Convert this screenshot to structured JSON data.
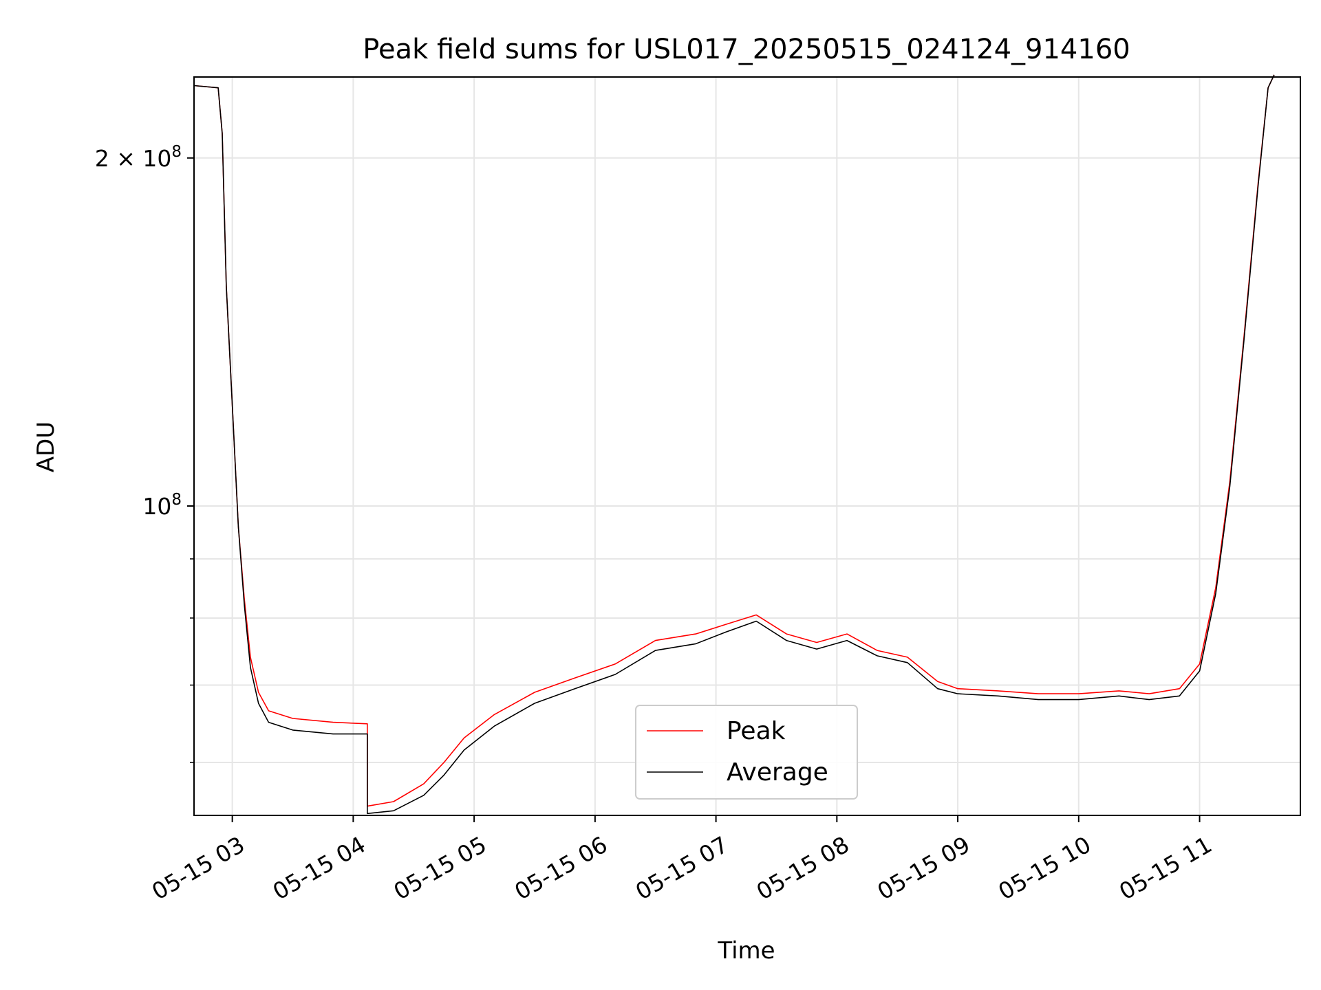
{
  "chart_data": {
    "type": "line",
    "title": "Peak field sums for USL017_20250515_024124_914160",
    "xlabel": "Time",
    "ylabel": "ADU",
    "xscale": "time",
    "yscale": "log",
    "xlim": [
      "2025-05-15 02:41",
      "2025-05-15 11:50"
    ],
    "ylim": [
      54000000.0,
      235000000.0
    ],
    "x_ticks": [
      {
        "value": "2025-05-15 03:00",
        "label": "05-15 03"
      },
      {
        "value": "2025-05-15 04:00",
        "label": "05-15 04"
      },
      {
        "value": "2025-05-15 05:00",
        "label": "05-15 05"
      },
      {
        "value": "2025-05-15 06:00",
        "label": "05-15 06"
      },
      {
        "value": "2025-05-15 07:00",
        "label": "05-15 07"
      },
      {
        "value": "2025-05-15 08:00",
        "label": "05-15 08"
      },
      {
        "value": "2025-05-15 09:00",
        "label": "05-15 09"
      },
      {
        "value": "2025-05-15 10:00",
        "label": "05-15 10"
      },
      {
        "value": "2025-05-15 11:00",
        "label": "05-15 11"
      }
    ],
    "y_major_ticks": [
      {
        "value": 100000000,
        "base": "10",
        "exp": "8",
        "prefix": ""
      },
      {
        "value": 200000000,
        "base": "10",
        "exp": "8",
        "prefix": "2 × "
      }
    ],
    "y_minor_ticks": [
      60000000,
      70000000,
      80000000,
      90000000
    ],
    "grid": true,
    "legend": {
      "position": "lower-center",
      "entries": [
        "Peak",
        "Average"
      ]
    },
    "series": [
      {
        "name": "Peak",
        "color": "#ff0000",
        "points": [
          [
            "2025-05-15 02:41",
            231000000.0
          ],
          [
            "2025-05-15 02:53",
            230000000.0
          ],
          [
            "2025-05-15 02:55",
            210000000.0
          ],
          [
            "2025-05-15 02:57",
            155000000.0
          ],
          [
            "2025-05-15 03:00",
            122000000.0
          ],
          [
            "2025-05-15 03:03",
            96000000.0
          ],
          [
            "2025-05-15 03:06",
            83000000.0
          ],
          [
            "2025-05-15 03:09",
            74000000.0
          ],
          [
            "2025-05-15 03:13",
            69000000.0
          ],
          [
            "2025-05-15 03:18",
            66500000.0
          ],
          [
            "2025-05-15 03:30",
            65500000.0
          ],
          [
            "2025-05-15 03:50",
            65000000.0
          ],
          [
            "2025-05-15 04:07",
            64800000.0
          ],
          [
            "2025-05-15 04:07",
            55000000.0
          ],
          [
            "2025-05-15 04:20",
            55500000.0
          ],
          [
            "2025-05-15 04:35",
            57500000.0
          ],
          [
            "2025-05-15 04:45",
            60000000.0
          ],
          [
            "2025-05-15 04:55",
            63000000.0
          ],
          [
            "2025-05-15 05:10",
            66000000.0
          ],
          [
            "2025-05-15 05:30",
            69000000.0
          ],
          [
            "2025-05-15 05:50",
            71000000.0
          ],
          [
            "2025-05-15 06:10",
            73000000.0
          ],
          [
            "2025-05-15 06:30",
            76500000.0
          ],
          [
            "2025-05-15 06:50",
            77500000.0
          ],
          [
            "2025-05-15 07:05",
            79000000.0
          ],
          [
            "2025-05-15 07:20",
            80500000.0
          ],
          [
            "2025-05-15 07:35",
            77500000.0
          ],
          [
            "2025-05-15 07:50",
            76200000.0
          ],
          [
            "2025-05-15 08:05",
            77500000.0
          ],
          [
            "2025-05-15 08:20",
            75000000.0
          ],
          [
            "2025-05-15 08:35",
            74000000.0
          ],
          [
            "2025-05-15 08:50",
            70500000.0
          ],
          [
            "2025-05-15 09:00",
            69500000.0
          ],
          [
            "2025-05-15 09:20",
            69200000.0
          ],
          [
            "2025-05-15 09:40",
            68800000.0
          ],
          [
            "2025-05-15 10:00",
            68800000.0
          ],
          [
            "2025-05-15 10:20",
            69200000.0
          ],
          [
            "2025-05-15 10:35",
            68800000.0
          ],
          [
            "2025-05-15 10:50",
            69500000.0
          ],
          [
            "2025-05-15 11:00",
            73000000.0
          ],
          [
            "2025-05-15 11:08",
            85000000.0
          ],
          [
            "2025-05-15 11:15",
            105000000.0
          ],
          [
            "2025-05-15 11:22",
            140000000.0
          ],
          [
            "2025-05-15 11:29",
            190000000.0
          ],
          [
            "2025-05-15 11:34",
            230000000.0
          ],
          [
            "2025-05-15 11:37",
            236000000.0
          ]
        ]
      },
      {
        "name": "Average",
        "color": "#000000",
        "points": [
          [
            "2025-05-15 02:41",
            231000000.0
          ],
          [
            "2025-05-15 02:53",
            230000000.0
          ],
          [
            "2025-05-15 02:55",
            210000000.0
          ],
          [
            "2025-05-15 02:57",
            155000000.0
          ],
          [
            "2025-05-15 03:00",
            122000000.0
          ],
          [
            "2025-05-15 03:03",
            96000000.0
          ],
          [
            "2025-05-15 03:06",
            82000000.0
          ],
          [
            "2025-05-15 03:09",
            72500000.0
          ],
          [
            "2025-05-15 03:13",
            67500000.0
          ],
          [
            "2025-05-15 03:18",
            65000000.0
          ],
          [
            "2025-05-15 03:30",
            64000000.0
          ],
          [
            "2025-05-15 03:50",
            63500000.0
          ],
          [
            "2025-05-15 04:07",
            63500000.0
          ],
          [
            "2025-05-15 04:07",
            54200000.0
          ],
          [
            "2025-05-15 04:20",
            54500000.0
          ],
          [
            "2025-05-15 04:35",
            56200000.0
          ],
          [
            "2025-05-15 04:45",
            58500000.0
          ],
          [
            "2025-05-15 04:55",
            61500000.0
          ],
          [
            "2025-05-15 05:10",
            64500000.0
          ],
          [
            "2025-05-15 05:30",
            67500000.0
          ],
          [
            "2025-05-15 05:50",
            69500000.0
          ],
          [
            "2025-05-15 06:10",
            71500000.0
          ],
          [
            "2025-05-15 06:30",
            75000000.0
          ],
          [
            "2025-05-15 06:50",
            76000000.0
          ],
          [
            "2025-05-15 07:05",
            77800000.0
          ],
          [
            "2025-05-15 07:20",
            79500000.0
          ],
          [
            "2025-05-15 07:35",
            76500000.0
          ],
          [
            "2025-05-15 07:50",
            75200000.0
          ],
          [
            "2025-05-15 08:05",
            76500000.0
          ],
          [
            "2025-05-15 08:20",
            74200000.0
          ],
          [
            "2025-05-15 08:35",
            73200000.0
          ],
          [
            "2025-05-15 08:50",
            69500000.0
          ],
          [
            "2025-05-15 09:00",
            68800000.0
          ],
          [
            "2025-05-15 09:20",
            68500000.0
          ],
          [
            "2025-05-15 09:40",
            68000000.0
          ],
          [
            "2025-05-15 10:00",
            68000000.0
          ],
          [
            "2025-05-15 10:20",
            68500000.0
          ],
          [
            "2025-05-15 10:35",
            68000000.0
          ],
          [
            "2025-05-15 10:50",
            68500000.0
          ],
          [
            "2025-05-15 11:00",
            72000000.0
          ],
          [
            "2025-05-15 11:08",
            84000000.0
          ],
          [
            "2025-05-15 11:15",
            104000000.0
          ],
          [
            "2025-05-15 11:22",
            139000000.0
          ],
          [
            "2025-05-15 11:29",
            189000000.0
          ],
          [
            "2025-05-15 11:34",
            230000000.0
          ],
          [
            "2025-05-15 11:37",
            236000000.0
          ]
        ]
      }
    ]
  }
}
